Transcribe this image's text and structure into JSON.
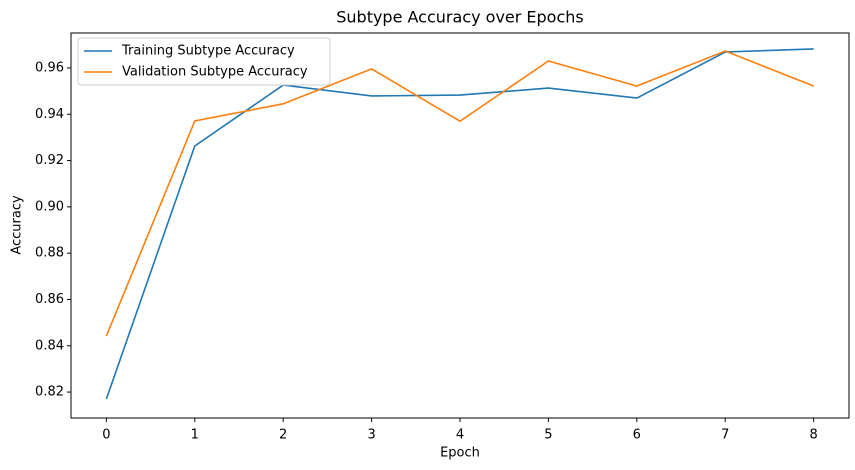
{
  "chart_data": {
    "type": "line",
    "title": "Subtype Accuracy over Epochs",
    "x_label": "Epoch",
    "y_label": "Accuracy",
    "x": [
      0,
      1,
      2,
      3,
      4,
      5,
      6,
      7,
      8
    ],
    "series": [
      {
        "name": "Training Subtype Accuracy",
        "color": "#1f77b4",
        "values": [
          0.817,
          0.9263,
          0.9526,
          0.9479,
          0.9483,
          0.9513,
          0.947,
          0.9669,
          0.9682
        ]
      },
      {
        "name": "Validation Subtype Accuracy",
        "color": "#ff7f0e",
        "values": [
          0.8442,
          0.9371,
          0.9445,
          0.9596,
          0.937,
          0.963,
          0.9522,
          0.9673,
          0.9522
        ]
      }
    ],
    "xlim": [
      -0.4,
      8.4
    ],
    "ylim": [
      0.8088,
      0.9751
    ],
    "xticks": [
      0,
      1,
      2,
      3,
      4,
      5,
      6,
      7,
      8
    ],
    "yticks": [
      {
        "value": 0.82,
        "label": "0.82"
      },
      {
        "value": 0.84,
        "label": "0.84"
      },
      {
        "value": 0.86,
        "label": "0.86"
      },
      {
        "value": 0.88,
        "label": "0.88"
      },
      {
        "value": 0.9,
        "label": "0.90"
      },
      {
        "value": 0.92,
        "label": "0.92"
      },
      {
        "value": 0.94,
        "label": "0.94"
      },
      {
        "value": 0.96,
        "label": "0.96"
      }
    ],
    "legend": "upper-left"
  }
}
